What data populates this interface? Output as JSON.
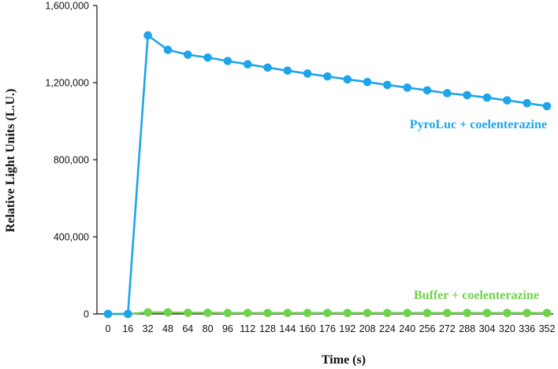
{
  "chart_data": {
    "type": "line",
    "xlabel": "Time (s)",
    "ylabel": "Relative Light Units (L.U.)",
    "x": [
      0,
      16,
      32,
      48,
      64,
      80,
      96,
      112,
      128,
      144,
      160,
      176,
      192,
      208,
      224,
      240,
      256,
      272,
      288,
      304,
      320,
      336,
      352
    ],
    "ylim": [
      0,
      1600000
    ],
    "yticks": [
      "0",
      "400,000",
      "800,000",
      "1,200,000",
      "1,600,000"
    ],
    "ytick_values": [
      0,
      400000,
      800000,
      1200000,
      1600000
    ],
    "grid": false,
    "series": [
      {
        "name": "PyroLuc + coelenterazine",
        "color": "#1ea5e9",
        "values": [
          0,
          0,
          1445000,
          1370000,
          1345000,
          1330000,
          1312000,
          1295000,
          1278000,
          1262000,
          1247000,
          1232000,
          1217000,
          1203000,
          1188000,
          1174000,
          1160000,
          1145000,
          1135000,
          1122000,
          1108000,
          1093000,
          1078000
        ]
      },
      {
        "name": "Buffer + coelenterazine",
        "color": "#6ed24a",
        "values": [
          0,
          0,
          8000,
          8000,
          6000,
          6000,
          5000,
          5000,
          5000,
          5000,
          5000,
          5000,
          5000,
          5000,
          5000,
          5000,
          5000,
          5000,
          5000,
          5000,
          5000,
          5000,
          5000
        ]
      }
    ]
  }
}
